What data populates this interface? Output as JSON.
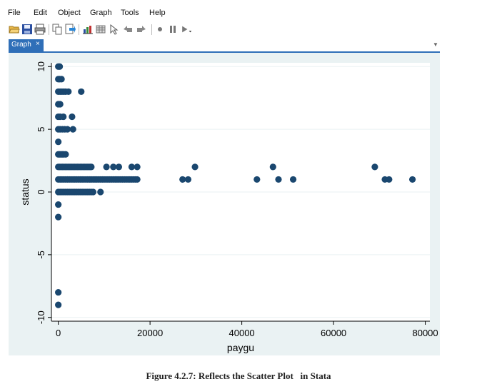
{
  "menu": {
    "items": [
      "File",
      "Edit",
      "Object",
      "Graph",
      "Tools",
      "Help"
    ]
  },
  "toolbar": {
    "icons": [
      "open-icon",
      "save-icon",
      "print-icon",
      "copy-icon",
      "export-icon",
      "graph-editor-icon",
      "data-icon",
      "pointer-icon",
      "undo-icon",
      "redo-icon",
      "record-icon",
      "pause-icon",
      "play-icon"
    ]
  },
  "tabs": [
    {
      "label": "Graph",
      "close": "×"
    }
  ],
  "colors": {
    "marker": "#1a476f",
    "plot_bg": "#eaf2f3",
    "tab": "#2f6fb8"
  },
  "caption": "Figure 4.2.7: Reflects the Scatter Plot   in Stata",
  "chart_data": {
    "type": "scatter",
    "xlabel": "paygu",
    "ylabel": "status",
    "xlim": [
      -1500,
      81000
    ],
    "ylim": [
      -10.3,
      10.3
    ],
    "xticks": [
      0,
      20000,
      40000,
      60000,
      80000
    ],
    "xtick_labels": [
      "0",
      "20000",
      "40000",
      "60000",
      "80000"
    ],
    "yticks": [
      -10,
      -5,
      0,
      5,
      10
    ],
    "ytick_labels": [
      "-10",
      "-5",
      "0",
      "5",
      "10"
    ],
    "grid": "horizontal",
    "series": [
      {
        "points": [
          [
            0,
            10
          ],
          [
            300,
            10
          ],
          [
            0,
            9
          ],
          [
            300,
            9
          ],
          [
            700,
            9
          ],
          [
            0,
            8
          ],
          [
            400,
            8
          ],
          [
            800,
            8
          ],
          [
            1200,
            8
          ],
          [
            1600,
            8
          ],
          [
            2200,
            8
          ],
          [
            5000,
            8
          ],
          [
            0,
            7
          ],
          [
            400,
            7
          ],
          [
            0,
            6
          ],
          [
            400,
            6
          ],
          [
            1100,
            6
          ],
          [
            3000,
            6
          ],
          [
            0,
            5
          ],
          [
            400,
            5
          ],
          [
            900,
            5
          ],
          [
            1400,
            5
          ],
          [
            2000,
            5
          ],
          [
            3200,
            5
          ],
          [
            0,
            4
          ],
          [
            0,
            3
          ],
          [
            300,
            3
          ],
          [
            600,
            3
          ],
          [
            900,
            3
          ],
          [
            1200,
            3
          ],
          [
            1600,
            3
          ],
          [
            0,
            2
          ],
          [
            300,
            2
          ],
          [
            600,
            2
          ],
          [
            900,
            2
          ],
          [
            1200,
            2
          ],
          [
            1500,
            2
          ],
          [
            1800,
            2
          ],
          [
            2100,
            2
          ],
          [
            2400,
            2
          ],
          [
            2700,
            2
          ],
          [
            3000,
            2
          ],
          [
            3300,
            2
          ],
          [
            3600,
            2
          ],
          [
            3900,
            2
          ],
          [
            4200,
            2
          ],
          [
            4500,
            2
          ],
          [
            4800,
            2
          ],
          [
            5100,
            2
          ],
          [
            5400,
            2
          ],
          [
            5700,
            2
          ],
          [
            6000,
            2
          ],
          [
            6300,
            2
          ],
          [
            6600,
            2
          ],
          [
            6900,
            2
          ],
          [
            7200,
            2
          ],
          [
            10500,
            2
          ],
          [
            12000,
            2
          ],
          [
            13200,
            2
          ],
          [
            16000,
            2
          ],
          [
            17200,
            2
          ],
          [
            29800,
            2
          ],
          [
            46800,
            2
          ],
          [
            69000,
            2
          ],
          [
            0,
            1
          ],
          [
            400,
            1
          ],
          [
            800,
            1
          ],
          [
            1200,
            1
          ],
          [
            1600,
            1
          ],
          [
            2000,
            1
          ],
          [
            2400,
            1
          ],
          [
            2800,
            1
          ],
          [
            3200,
            1
          ],
          [
            3600,
            1
          ],
          [
            4000,
            1
          ],
          [
            4400,
            1
          ],
          [
            4800,
            1
          ],
          [
            5200,
            1
          ],
          [
            5600,
            1
          ],
          [
            6000,
            1
          ],
          [
            6400,
            1
          ],
          [
            6800,
            1
          ],
          [
            7200,
            1
          ],
          [
            7600,
            1
          ],
          [
            8000,
            1
          ],
          [
            8400,
            1
          ],
          [
            8800,
            1
          ],
          [
            9200,
            1
          ],
          [
            9600,
            1
          ],
          [
            10000,
            1
          ],
          [
            10400,
            1
          ],
          [
            10800,
            1
          ],
          [
            11200,
            1
          ],
          [
            11600,
            1
          ],
          [
            12000,
            1
          ],
          [
            12400,
            1
          ],
          [
            12800,
            1
          ],
          [
            13200,
            1
          ],
          [
            13600,
            1
          ],
          [
            14000,
            1
          ],
          [
            14400,
            1
          ],
          [
            14800,
            1
          ],
          [
            15200,
            1
          ],
          [
            15600,
            1
          ],
          [
            16000,
            1
          ],
          [
            16400,
            1
          ],
          [
            16800,
            1
          ],
          [
            17200,
            1
          ],
          [
            27100,
            1
          ],
          [
            28300,
            1
          ],
          [
            43300,
            1
          ],
          [
            48000,
            1
          ],
          [
            51200,
            1
          ],
          [
            71200,
            1
          ],
          [
            72100,
            1
          ],
          [
            77200,
            1
          ],
          [
            0,
            0
          ],
          [
            400,
            0
          ],
          [
            800,
            0
          ],
          [
            1200,
            0
          ],
          [
            1600,
            0
          ],
          [
            2000,
            0
          ],
          [
            2400,
            0
          ],
          [
            2800,
            0
          ],
          [
            3200,
            0
          ],
          [
            3600,
            0
          ],
          [
            4000,
            0
          ],
          [
            4400,
            0
          ],
          [
            4800,
            0
          ],
          [
            5200,
            0
          ],
          [
            5600,
            0
          ],
          [
            6000,
            0
          ],
          [
            6400,
            0
          ],
          [
            6800,
            0
          ],
          [
            7200,
            0
          ],
          [
            7600,
            0
          ],
          [
            9200,
            0
          ],
          [
            0,
            -1
          ],
          [
            0,
            -2
          ],
          [
            0,
            -8
          ],
          [
            0,
            -9
          ]
        ]
      }
    ]
  }
}
